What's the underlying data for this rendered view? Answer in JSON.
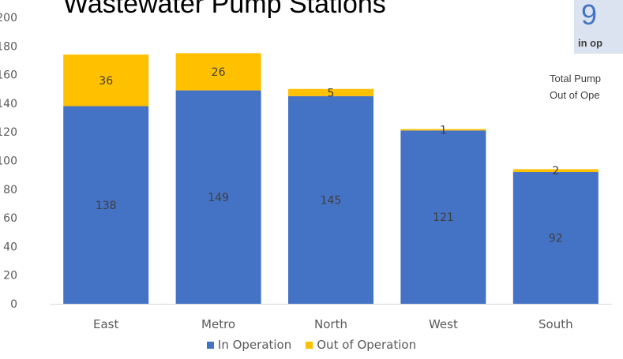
{
  "title": "Wastewater Pump Stations",
  "kpi": {
    "number": "9",
    "subtitle": "in op",
    "line1": "Total Pump",
    "line2": "Out of Ope"
  },
  "colors": {
    "in_operation": "#4472c4",
    "out_of_operation": "#ffc000"
  },
  "chart_data": {
    "type": "bar",
    "stacked": true,
    "categories": [
      "East",
      "Metro",
      "North",
      "West",
      "South"
    ],
    "series": [
      {
        "name": "In Operation",
        "values": [
          138,
          149,
          145,
          121,
          92
        ]
      },
      {
        "name": "Out of Operation",
        "values": [
          36,
          26,
          5,
          1,
          2
        ]
      }
    ],
    "ylim": [
      0,
      200
    ],
    "yticks": [
      0,
      20,
      40,
      60,
      80,
      100,
      120,
      140,
      160,
      180,
      200
    ],
    "xlabel": "",
    "ylabel": "",
    "grid": false,
    "legend": "bottom"
  }
}
